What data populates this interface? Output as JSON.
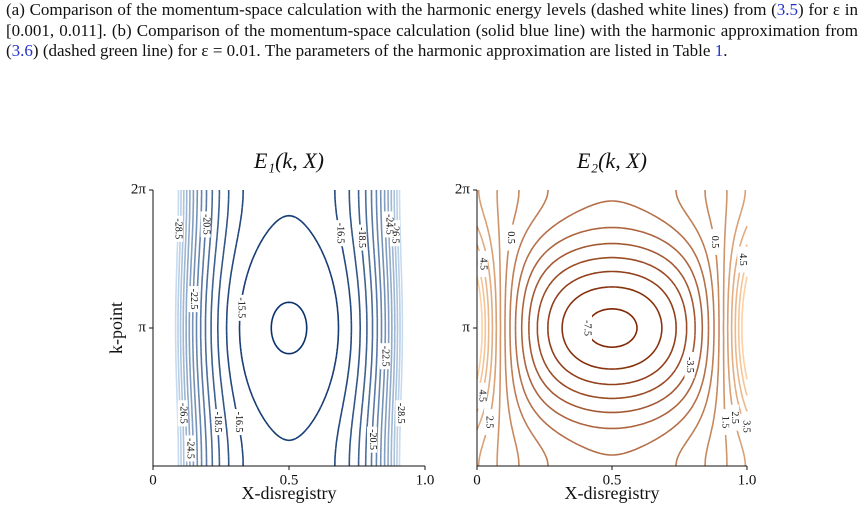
{
  "caption": [
    "(a) Comparison of the momentum-space calculation with the harmonic energy levels (dashed white lines) from (",
    "3.5",
    ") for ε in [0.001, 0.011]. (b) Comparison of the momentum-space calculation (solid blue line) with the harmonic approximation from (",
    "3.6",
    ") (dashed green line) for ε = 0.01. The parameters of the harmonic approximation are listed in Table ",
    "1",
    "."
  ],
  "chart_data": [
    {
      "type": "contour",
      "title": "E₁(k, X)",
      "x_label": "X-disregistry",
      "y_label": "k-point",
      "xlim": [
        0,
        1
      ],
      "xticks": [
        0,
        0.5,
        {
          "value": 1,
          "label": "1.0"
        }
      ],
      "ylim": [
        0,
        6.28318
      ],
      "yticks": [
        {
          "value": 3.14159,
          "label": "π"
        },
        {
          "value": 6.28318,
          "label": "2π"
        }
      ],
      "levels": [
        -28.5,
        -27.5,
        -26.5,
        -25.5,
        -24.5,
        -23.5,
        -22.5,
        -21.5,
        -20.5,
        -19.5,
        -18.5,
        -17.5,
        -16.5,
        -15.5,
        -14.5
      ],
      "colormap": [
        "#c6dbef",
        "#08306b"
      ]
    },
    {
      "type": "contour",
      "title": "E₂(k, X)",
      "x_label": "X-disregistry",
      "xlim": [
        0,
        1
      ],
      "xticks": [
        0,
        0.5,
        {
          "value": 1,
          "label": "1.0"
        }
      ],
      "ylim": [
        0,
        6.28318
      ],
      "yticks": [
        {
          "value": 3.14159,
          "label": "π"
        },
        {
          "value": 6.28318,
          "label": "2π"
        }
      ],
      "levels": [
        -7.5,
        -6.5,
        -5.5,
        -4.5,
        -3.5,
        -2.5,
        -1.5,
        -0.5,
        0.5,
        1.5,
        2.5,
        3.5,
        4.5,
        5.5,
        6.5
      ],
      "colormap": [
        "#7f2704",
        "#fdd0a2"
      ]
    }
  ]
}
